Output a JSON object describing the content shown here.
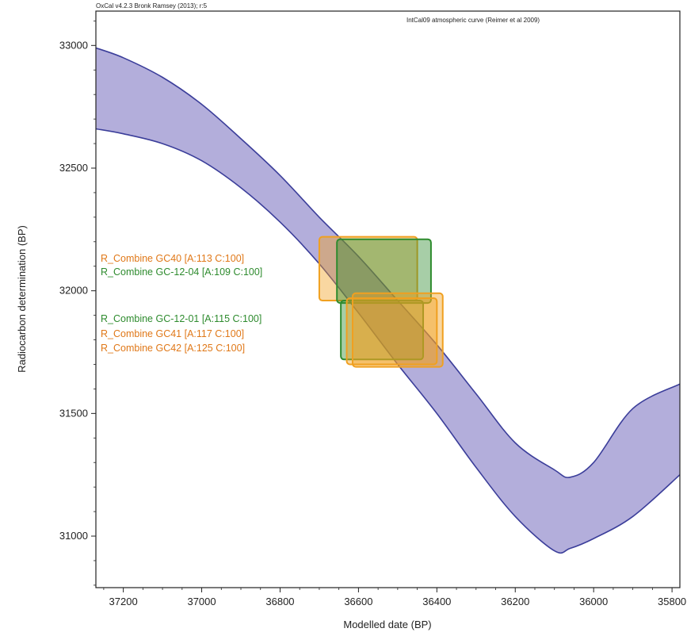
{
  "header": {
    "software_credit": "OxCal v4.2.3 Bronk Ramsey (2013); r:5",
    "curve_name": "IntCal09 atmospheric curve (Reimer et al 2009)"
  },
  "chart_data": {
    "type": "area",
    "xlabel": "Modelled date (BP)",
    "ylabel": "Radiocarbon determination (BP)",
    "xlim": [
      37270,
      35780
    ],
    "ylim": [
      30790,
      33140
    ],
    "x_reversed": true,
    "x_ticks": [
      37200,
      37000,
      36800,
      36600,
      36400,
      36200,
      36000,
      35800
    ],
    "y_ticks": [
      31000,
      31500,
      32000,
      32500,
      33000
    ],
    "curve_fill_color": "#b3aedb",
    "curve_line_color": "#3b3e9a",
    "calibration_band": {
      "x": [
        37270,
        37200,
        37100,
        37000,
        36900,
        36800,
        36700,
        36600,
        36500,
        36400,
        36300,
        36200,
        36100,
        36060,
        36000,
        35900,
        35780
      ],
      "upper": [
        32990,
        32950,
        32870,
        32760,
        32620,
        32470,
        32300,
        32140,
        31960,
        31780,
        31580,
        31380,
        31270,
        31240,
        31300,
        31520,
        31620
      ],
      "lower": [
        32660,
        32640,
        32600,
        32530,
        32420,
        32280,
        32110,
        31910,
        31700,
        31500,
        31280,
        31080,
        30940,
        30950,
        30990,
        31080,
        31250
      ]
    },
    "samples": [
      {
        "name": "R_Combine GC40 [A:113 C:100]",
        "color": "#f0a020",
        "label_color": "#e07818",
        "x_range": [
          36700,
          36450
        ],
        "y_range": [
          31960,
          32220
        ]
      },
      {
        "name": "R_Combine GC-12-04 [A:109 C:100]",
        "color": "#2e8b2e",
        "label_color": "#2e8b2e",
        "x_range": [
          36655,
          36415
        ],
        "y_range": [
          31950,
          32210
        ]
      },
      {
        "name": "R_Combine GC-12-01 [A:115 C:100]",
        "color": "#2e8b2e",
        "label_color": "#2e8b2e",
        "x_range": [
          36645,
          36435
        ],
        "y_range": [
          31720,
          31960
        ]
      },
      {
        "name": "R_Combine GC41 [A:117 C:100]",
        "color": "#f0a020",
        "label_color": "#e07818",
        "x_range": [
          36630,
          36400
        ],
        "y_range": [
          31700,
          31970
        ]
      },
      {
        "name": "R_Combine GC42 [A:125 C:100]",
        "color": "#f0a020",
        "label_color": "#e07818",
        "x_range": [
          36615,
          36385
        ],
        "y_range": [
          31690,
          31990
        ]
      }
    ]
  }
}
